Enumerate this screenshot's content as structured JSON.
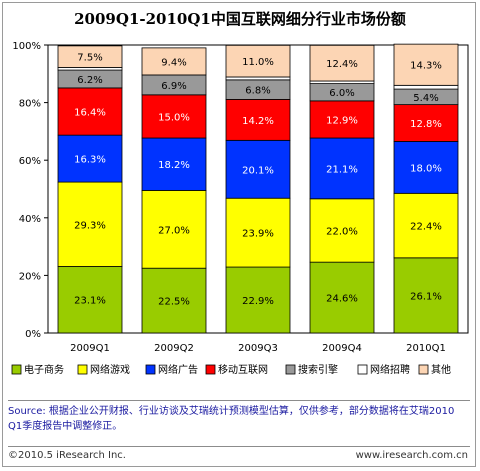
{
  "chart_data": {
    "type": "bar",
    "stacked": true,
    "title": "2009Q1-2010Q1中国互联网细分行业市场份额",
    "categories": [
      "2009Q1",
      "2009Q2",
      "2009Q3",
      "2009Q4",
      "2010Q1"
    ],
    "ylim": [
      0,
      100
    ],
    "yticks": [
      "0%",
      "20%",
      "40%",
      "60%",
      "80%",
      "100%"
    ],
    "legend_position": "bottom",
    "series": [
      {
        "name": "电子商务",
        "color": "#99cc00",
        "values": [
          23.1,
          22.5,
          22.9,
          24.6,
          26.1
        ],
        "labels": [
          "23.1%",
          "22.5%",
          "22.9%",
          "24.6%",
          "26.1%"
        ]
      },
      {
        "name": "网络游戏",
        "color": "#ffff00",
        "values": [
          29.3,
          27.0,
          23.9,
          22.0,
          22.4
        ],
        "labels": [
          "29.3%",
          "27.0%",
          "23.9%",
          "22.0%",
          "22.4%"
        ]
      },
      {
        "name": "网络广告",
        "color": "#0033ff",
        "values": [
          16.3,
          18.2,
          20.1,
          21.1,
          18.0
        ],
        "labels": [
          "16.3%",
          "18.2%",
          "20.1%",
          "21.1%",
          "18.0%"
        ]
      },
      {
        "name": "移动互联网",
        "color": "#ff0000",
        "values": [
          16.4,
          15.0,
          14.2,
          12.9,
          12.8
        ],
        "labels": [
          "16.4%",
          "15.0%",
          "14.2%",
          "12.9%",
          "12.8%"
        ]
      },
      {
        "name": "搜索引擎",
        "color": "#999999",
        "values": [
          6.2,
          6.9,
          6.8,
          6.0,
          5.4
        ],
        "labels": [
          "6.2%",
          "6.9%",
          "6.8%",
          "6.0%",
          "5.4%"
        ]
      },
      {
        "name": "网络招聘",
        "color": "#ffffff",
        "values": [
          0.9,
          0.0,
          1.0,
          0.9,
          1.3
        ],
        "labels": [
          "",
          "",
          "",
          "",
          ""
        ]
      },
      {
        "name": "其他",
        "color": "#fcd5b4",
        "values": [
          7.5,
          9.4,
          11.0,
          12.4,
          14.3
        ],
        "labels": [
          "7.5%",
          "9.4%",
          "11.0%",
          "12.4%",
          "14.3%"
        ]
      }
    ]
  },
  "source_text": "Source: 根据企业公开财报、行业访谈及艾瑞统计预测模型估算，仅供参考，部分数据将在艾瑞2010 Q1季度报告中调整修正。",
  "copyright": "©2010.5 iResearch Inc.",
  "website": "www.iresearch.com.cn"
}
